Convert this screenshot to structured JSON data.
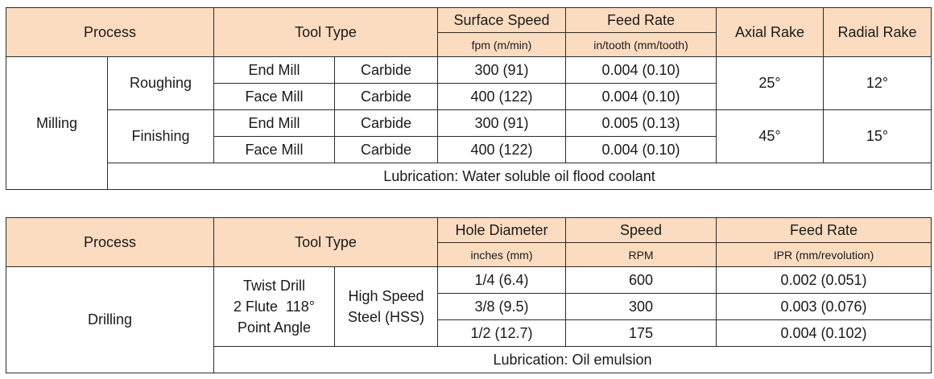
{
  "milling_table": {
    "headers": {
      "process": "Process",
      "tool_type": "Tool Type",
      "surface_speed": "Surface Speed",
      "surface_speed_unit": "fpm (m/min)",
      "feed_rate": "Feed Rate",
      "feed_rate_unit": "in/tooth (mm/tooth)",
      "axial_rake": "Axial Rake",
      "radial_rake": "Radial Rake"
    },
    "process": "Milling",
    "groups": [
      {
        "operation": "Roughing",
        "axial_rake": "25°",
        "radial_rake": "12°",
        "rows": [
          {
            "tool": "End Mill",
            "material": "Carbide",
            "speed": "300 (91)",
            "feed": "0.004 (0.10)"
          },
          {
            "tool": "Face Mill",
            "material": "Carbide",
            "speed": "400 (122)",
            "feed": "0.004 (0.10)"
          }
        ]
      },
      {
        "operation": "Finishing",
        "axial_rake": "45°",
        "radial_rake": "15°",
        "rows": [
          {
            "tool": "End Mill",
            "material": "Carbide",
            "speed": "300 (91)",
            "feed": "0.005 (0.13)"
          },
          {
            "tool": "Face Mill",
            "material": "Carbide",
            "speed": "400 (122)",
            "feed": "0.004 (0.10)"
          }
        ]
      }
    ],
    "lubrication": "Lubrication: Water soluble oil flood coolant"
  },
  "drilling_table": {
    "headers": {
      "process": "Process",
      "tool_type": "Tool Type",
      "hole_diameter": "Hole Diameter",
      "hole_diameter_unit": "inches (mm)",
      "speed": "Speed",
      "speed_unit": "RPM",
      "feed_rate": "Feed Rate",
      "feed_rate_unit": "IPR (mm/revolution)"
    },
    "process": "Drilling",
    "tool_lines": [
      "Twist Drill",
      "2 Flute  118°",
      "Point Angle"
    ],
    "material_lines": [
      "High Speed",
      "Steel (HSS)"
    ],
    "rows": [
      {
        "diameter": "1/4 (6.4)",
        "speed": "600",
        "feed": "0.002 (0.051)"
      },
      {
        "diameter": "3/8 (9.5)",
        "speed": "300",
        "feed": "0.003 (0.076)"
      },
      {
        "diameter": "1/2 (12.7)",
        "speed": "175",
        "feed": "0.004 (0.102)"
      }
    ],
    "lubrication": "Lubrication: Oil emulsion"
  }
}
